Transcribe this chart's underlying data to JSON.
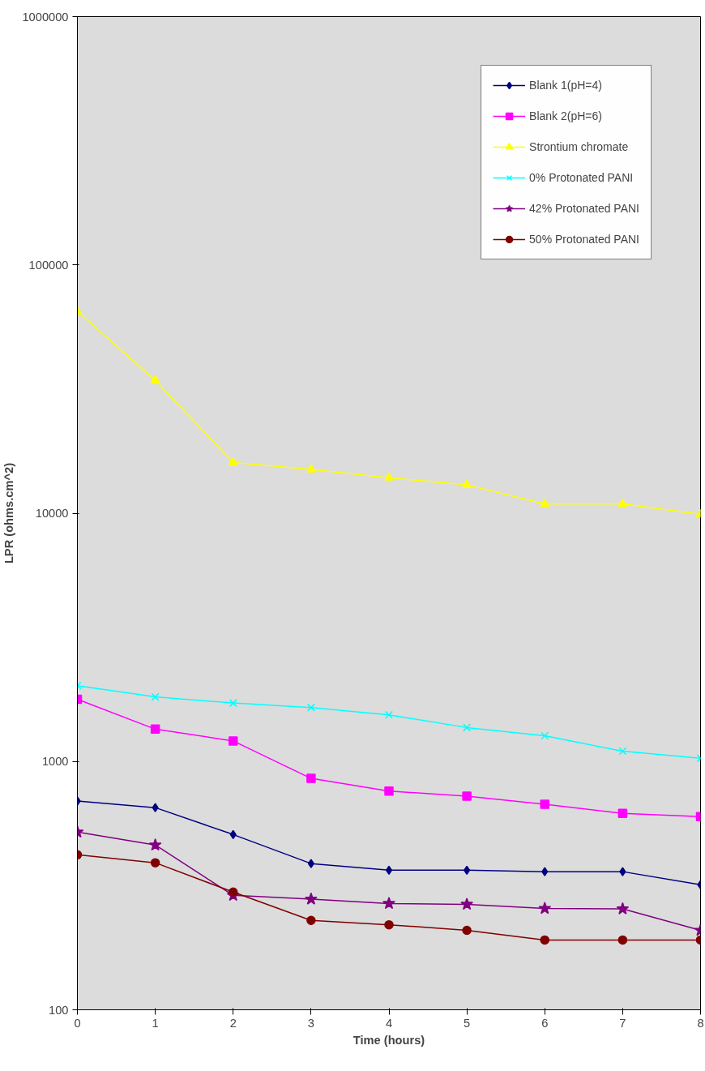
{
  "chart_data": {
    "type": "line",
    "xlabel": "Time (hours)",
    "ylabel": "LPR (ohms.cm^2)",
    "x": [
      0,
      1,
      2,
      3,
      4,
      5,
      6,
      7,
      8
    ],
    "series": [
      {
        "name": "Blank 1(pH=4)",
        "color": "#000080",
        "marker": "diamond",
        "values": [
          693,
          652,
          508,
          388,
          365,
          365,
          360,
          360,
          319
        ]
      },
      {
        "name": "Blank 2(pH=6)",
        "color": "#ff00ff",
        "marker": "square",
        "values": [
          1780,
          1350,
          1210,
          855,
          760,
          725,
          672,
          618,
          600
        ]
      },
      {
        "name": "Strontium chromate",
        "color": "#ffff00",
        "marker": "triangle",
        "values": [
          65000,
          34300,
          16000,
          15000,
          13900,
          13000,
          10900,
          10900,
          9900
        ]
      },
      {
        "name": "0% Protonated PANI",
        "color": "#00ffff",
        "marker": "cross",
        "values": [
          2020,
          1820,
          1720,
          1650,
          1540,
          1370,
          1270,
          1100,
          1030
        ]
      },
      {
        "name": "42% Protonated PANI",
        "color": "#800080",
        "marker": "star",
        "values": [
          520,
          461,
          289,
          279,
          268,
          266,
          256,
          255,
          209
        ]
      },
      {
        "name": "50% Protonated PANI",
        "color": "#800000",
        "marker": "circle",
        "values": [
          421,
          391,
          298,
          229,
          220,
          209,
          191,
          191,
          191
        ]
      }
    ],
    "log": "y",
    "xlim": [
      0,
      8
    ],
    "xticks": [
      0,
      1,
      2,
      3,
      4,
      5,
      6,
      7,
      8
    ],
    "ylim": [
      100,
      1000000
    ],
    "yticks": [
      100,
      1000,
      10000,
      100000,
      1000000
    ],
    "grid": false,
    "legend": "top right",
    "line_style": "solid"
  }
}
